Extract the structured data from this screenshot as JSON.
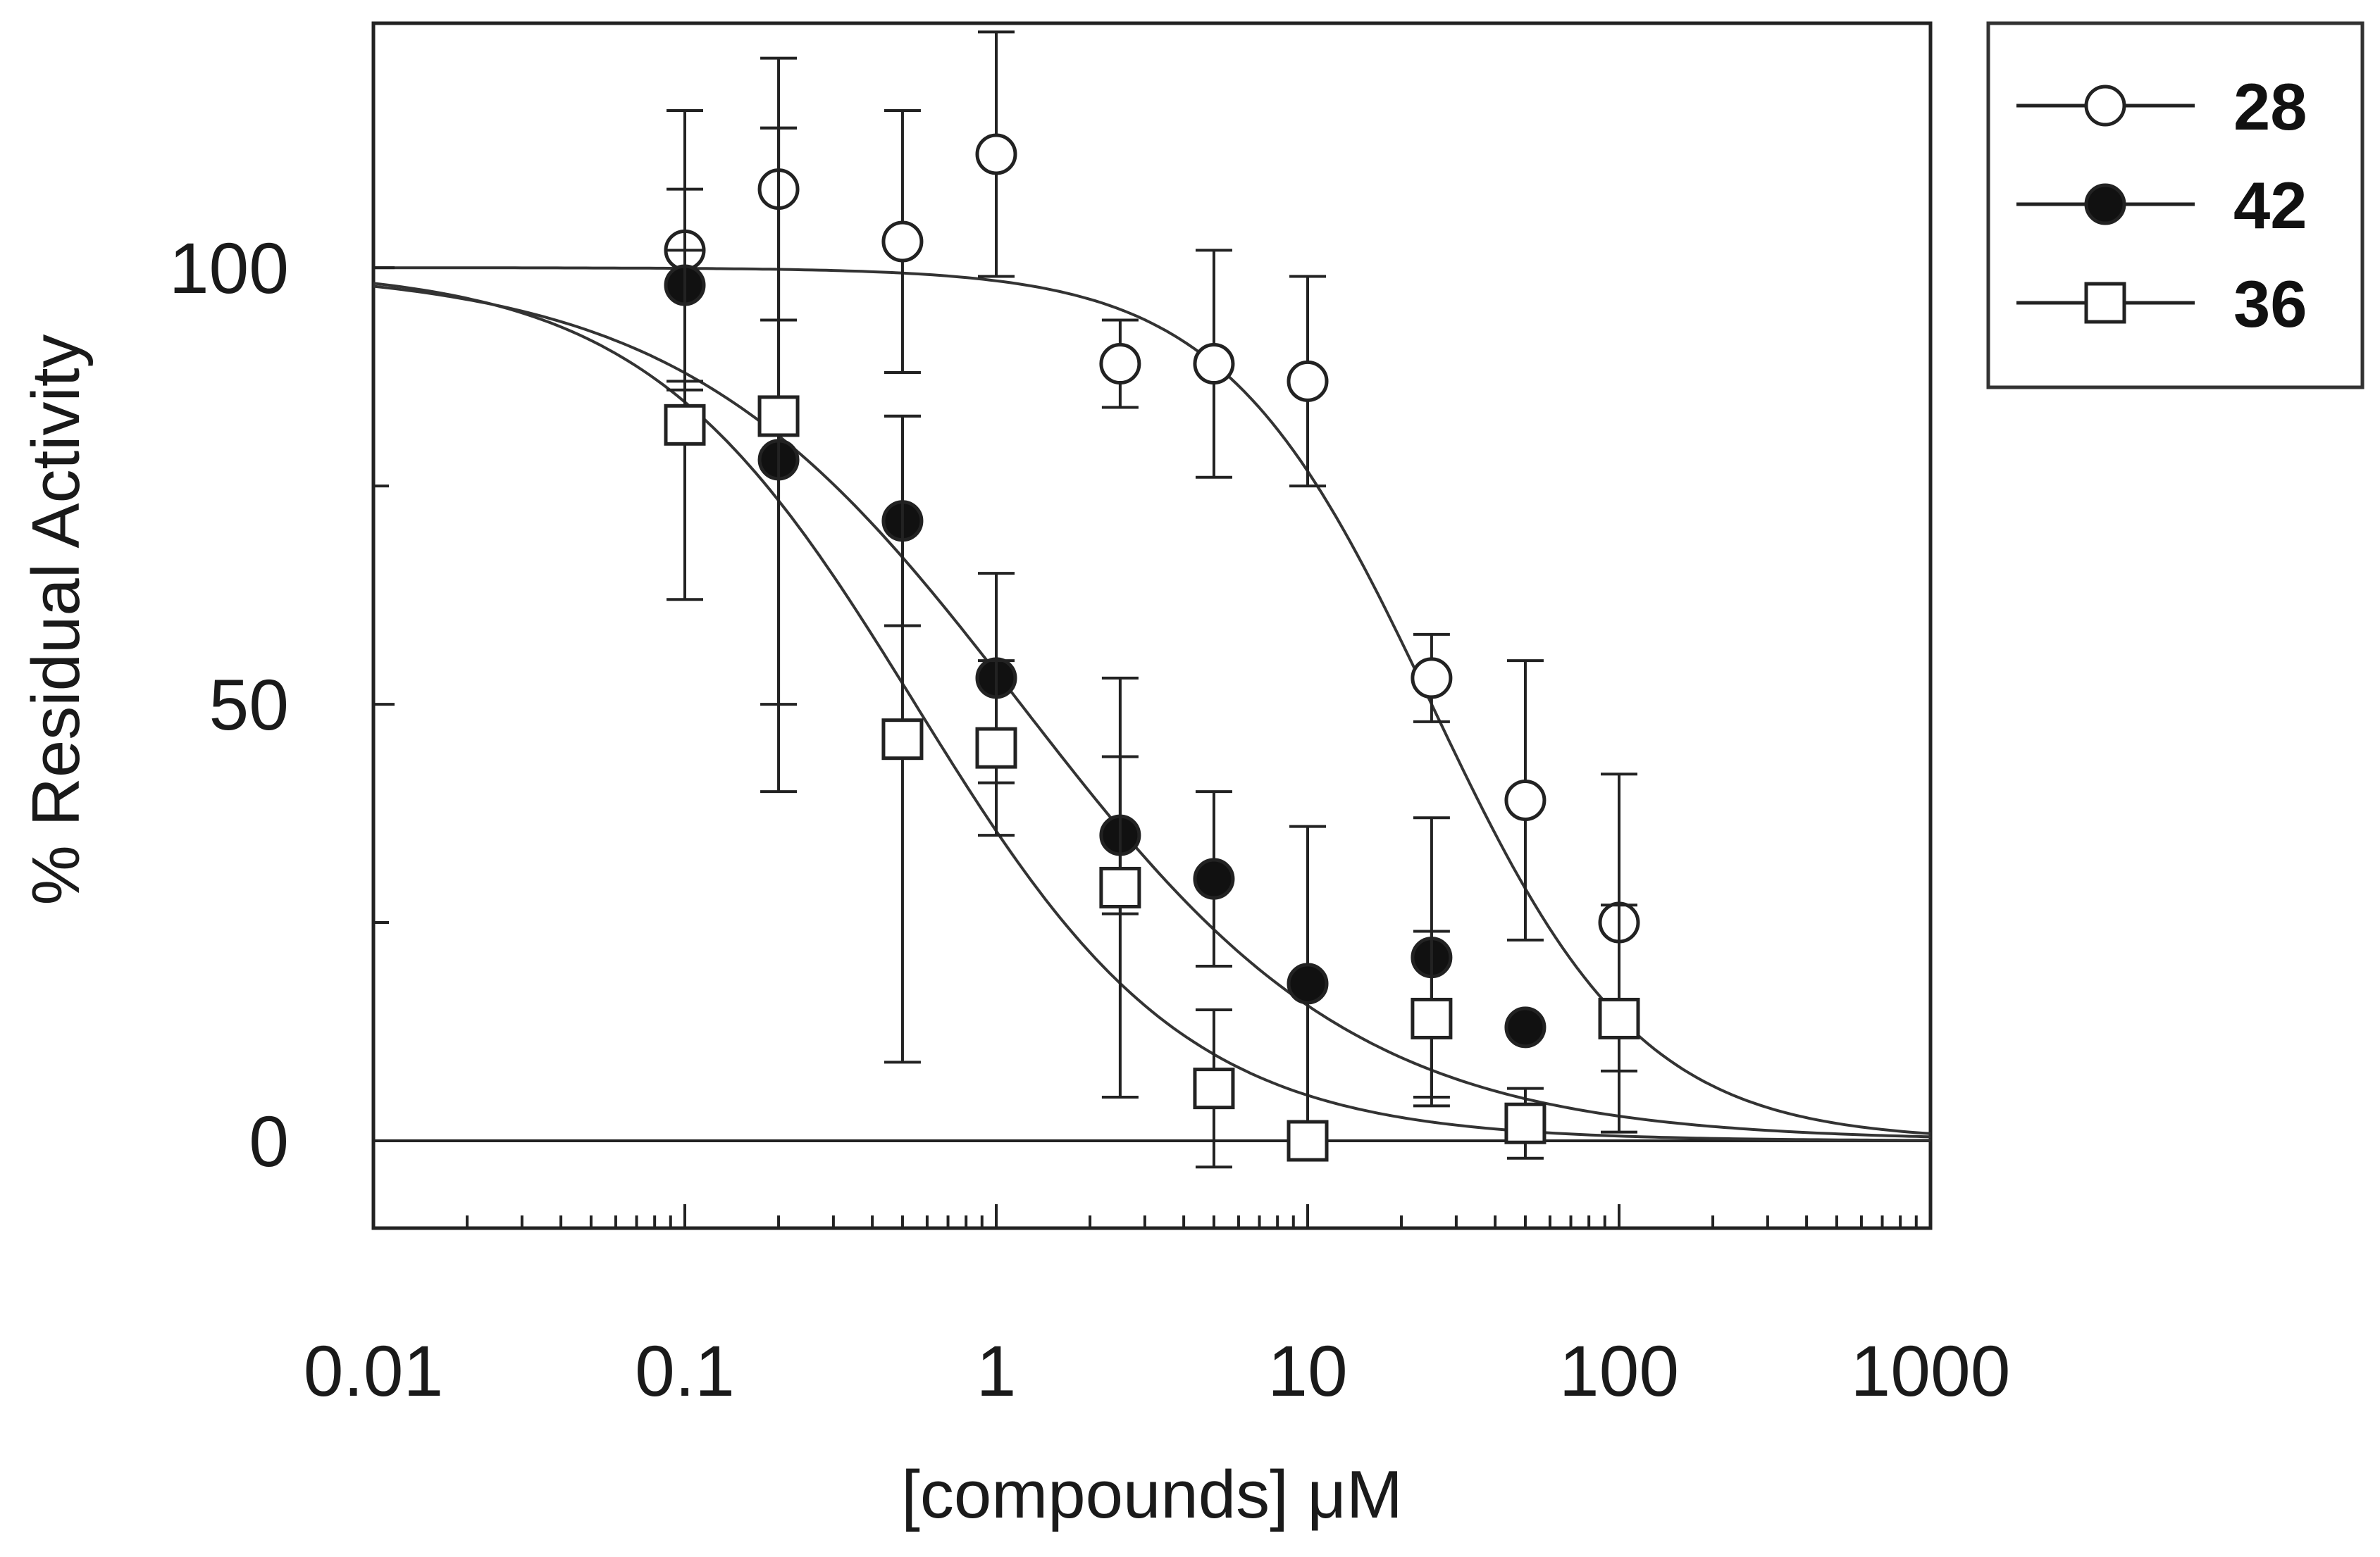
{
  "chart_data": {
    "type": "scatter",
    "title": "",
    "xlabel": "[compounds] μM",
    "ylabel": "% Residual Activity",
    "xscale": "log",
    "xlim": [
      0.01,
      1000
    ],
    "ylim": [
      -10,
      128
    ],
    "x_ticks": [
      {
        "value": 0.01,
        "label": "0.01"
      },
      {
        "value": 0.1,
        "label": "0.1"
      },
      {
        "value": 1,
        "label": "1"
      },
      {
        "value": 10,
        "label": "10"
      },
      {
        "value": 100,
        "label": "100"
      },
      {
        "value": 1000,
        "label": "1000"
      }
    ],
    "y_ticks": [
      {
        "value": 0,
        "label": "0"
      },
      {
        "value": 50,
        "label": "50"
      },
      {
        "value": 100,
        "label": "100"
      }
    ],
    "y_minor_ticks": [
      25,
      75
    ],
    "zero_line": 0,
    "legend_position": "outside top-right",
    "series": [
      {
        "name": "28",
        "marker": "open-circle",
        "fit": {
          "top": 100,
          "ic50": 25,
          "hill": 1.3
        },
        "points": [
          {
            "x": 0.1,
            "y": 102,
            "err": 16
          },
          {
            "x": 0.2,
            "y": 109,
            "err": 15
          },
          {
            "x": 0.5,
            "y": 103,
            "err": 15
          },
          {
            "x": 1,
            "y": 113,
            "err": 14
          },
          {
            "x": 2.5,
            "y": 89,
            "err": 5
          },
          {
            "x": 5,
            "y": 89,
            "err": 13
          },
          {
            "x": 10,
            "y": 87,
            "err": 12
          },
          {
            "x": 25,
            "y": 53,
            "err": 5
          },
          {
            "x": 50,
            "y": 39,
            "err": 16
          },
          {
            "x": 100,
            "y": 25,
            "err": 17
          }
        ]
      },
      {
        "name": "42",
        "marker": "filled-circle",
        "fit": {
          "top": 100,
          "ic50": 1.2,
          "hill": 0.8
        },
        "points": [
          {
            "x": 0.1,
            "y": 98,
            "err": 11
          },
          {
            "x": 0.2,
            "y": 78,
            "err": 38
          },
          {
            "x": 0.5,
            "y": 71,
            "err": 12
          },
          {
            "x": 1,
            "y": 53,
            "err": 12
          },
          {
            "x": 2.5,
            "y": 35,
            "err": 9
          },
          {
            "x": 5,
            "y": 30,
            "err": 10
          },
          {
            "x": 10,
            "y": 18,
            "err": 18
          },
          {
            "x": 25,
            "y": 21,
            "err": 16
          },
          {
            "x": 50,
            "y": 13,
            "err": 0
          },
          {
            "x": 100,
            "y": null,
            "err": 0
          }
        ]
      },
      {
        "name": "36",
        "marker": "open-square",
        "fit": {
          "top": 100,
          "ic50": 0.55,
          "hill": 1.0
        },
        "points": [
          {
            "x": 0.1,
            "y": 82,
            "err": 20
          },
          {
            "x": 0.2,
            "y": 83,
            "err": 33
          },
          {
            "x": 0.5,
            "y": 46,
            "err": 37
          },
          {
            "x": 1,
            "y": 45,
            "err": 10
          },
          {
            "x": 2.5,
            "y": 29,
            "err": 24
          },
          {
            "x": 5,
            "y": 6,
            "err": 9
          },
          {
            "x": 10,
            "y": 0,
            "err": 0
          },
          {
            "x": 25,
            "y": 14,
            "err": 10
          },
          {
            "x": 50,
            "y": 2,
            "err": 4
          },
          {
            "x": 100,
            "y": 14,
            "err": 13
          }
        ]
      }
    ]
  }
}
